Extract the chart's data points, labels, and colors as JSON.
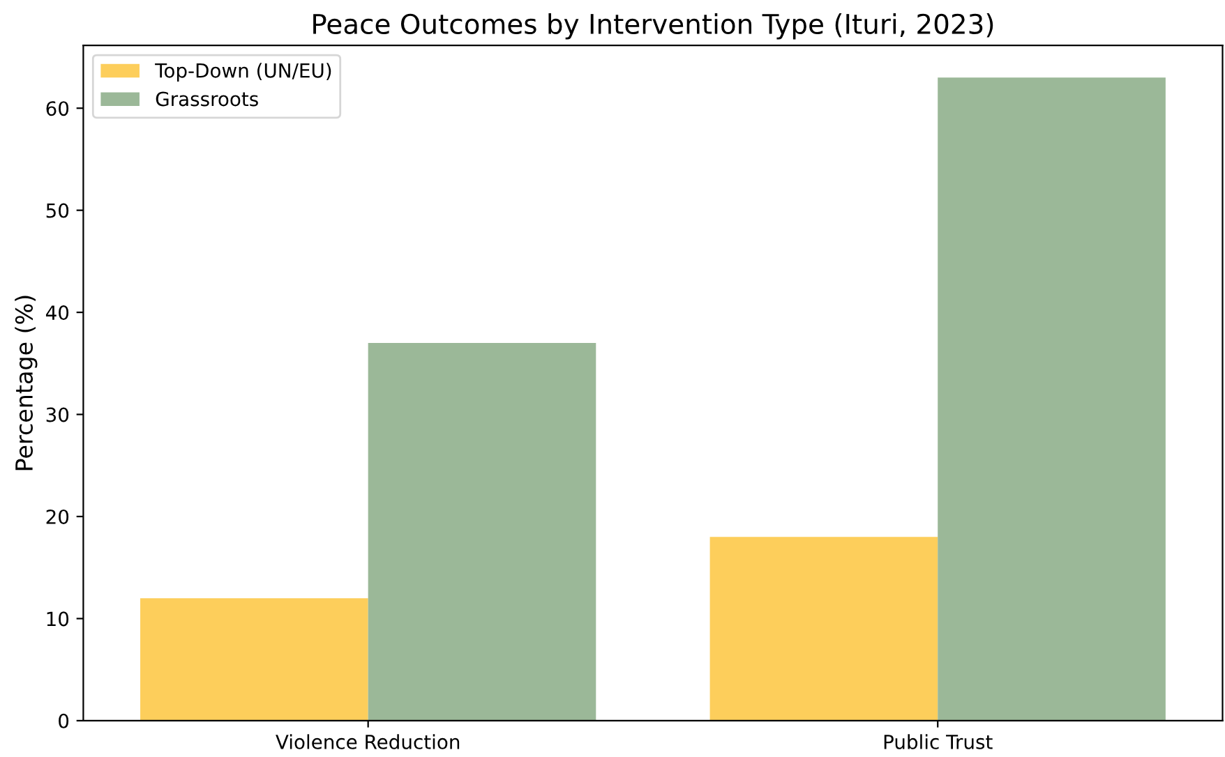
{
  "chart_data": {
    "type": "bar",
    "title": "Peace Outcomes by Intervention Type (Ituri, 2023)",
    "ylabel": "Percentage (%)",
    "categories": [
      "Violence Reduction",
      "Public Trust"
    ],
    "series": [
      {
        "name": "Top-Down (UN/EU)",
        "color": "#fdce5b",
        "values": [
          12,
          18
        ]
      },
      {
        "name": "Grassroots",
        "color": "#9bb898",
        "values": [
          37,
          63
        ]
      }
    ],
    "ylim": [
      0,
      66.15
    ],
    "yticks": [
      0,
      10,
      20,
      30,
      40,
      50,
      60
    ],
    "grid": false,
    "legend": "top left"
  }
}
